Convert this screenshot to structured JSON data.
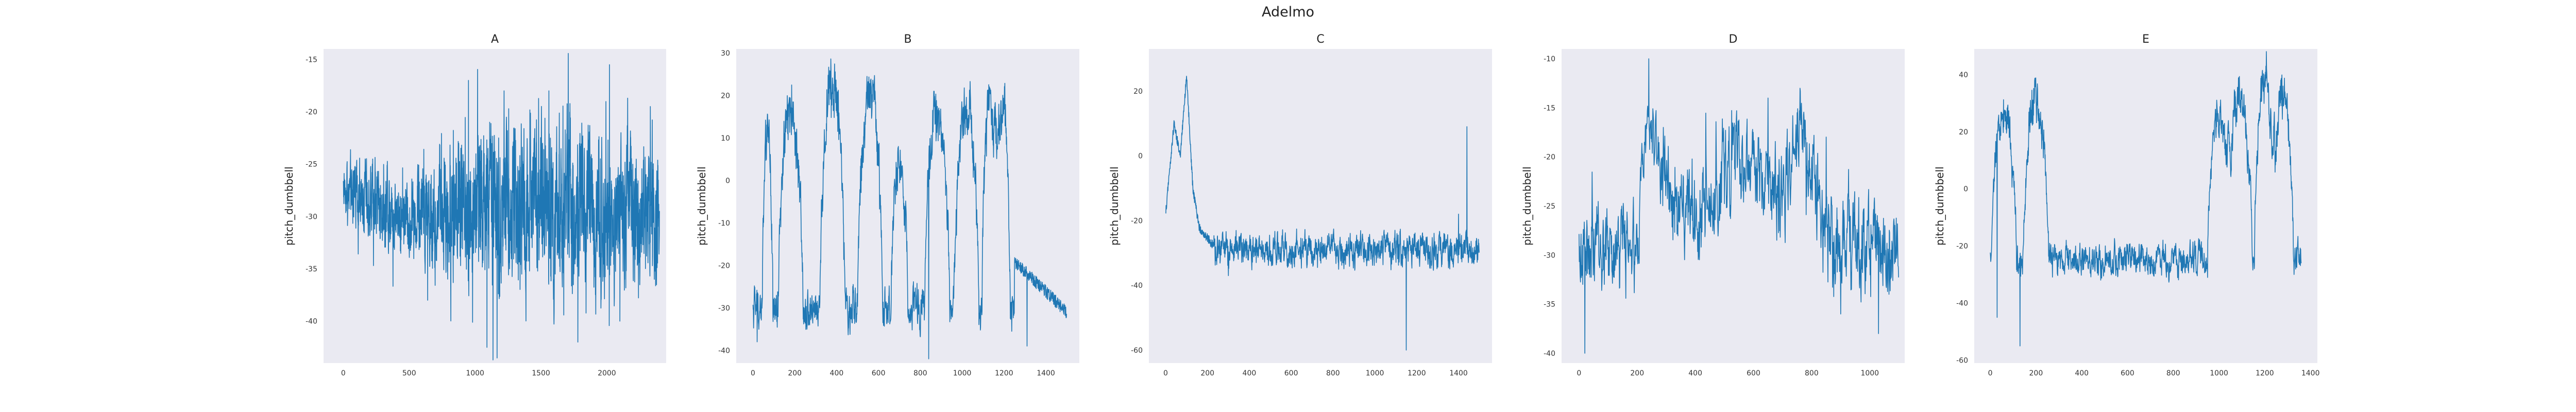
{
  "chart_data": {
    "suptitle": "Adelmo",
    "type": "line",
    "line_color": "#1f77b4",
    "panel_background": "#eaeaf2",
    "grid": false,
    "panels": [
      {
        "title": "A",
        "ylabel": "pitch_dumbbell",
        "xlim": [
          -150,
          2450
        ],
        "ylim": [
          -44,
          -14
        ],
        "xticks": [
          0,
          500,
          1000,
          1500,
          2000
        ],
        "yticks": [
          -40,
          -35,
          -30,
          -25,
          -20,
          -15
        ],
        "n_points": 2400,
        "segments": [
          {
            "x": 0,
            "base": -27,
            "amp": 1.5
          },
          {
            "x": 150,
            "base": -28,
            "amp": 2.5
          },
          {
            "x": 400,
            "base": -30,
            "amp": 2.5
          },
          {
            "x": 700,
            "base": -30,
            "amp": 3.5
          },
          {
            "x": 900,
            "base": -29,
            "amp": 5
          },
          {
            "x": 1500,
            "base": -29,
            "amp": 5.5
          },
          {
            "x": 2400,
            "base": -30,
            "amp": 4.5
          }
        ],
        "extremes": [
          {
            "x": 950,
            "y": -17
          },
          {
            "x": 1090,
            "y": -42.5
          },
          {
            "x": 1220,
            "y": -18
          },
          {
            "x": 1560,
            "y": -18
          },
          {
            "x": 1780,
            "y": -42
          },
          {
            "x": 2020,
            "y": -15.5
          },
          {
            "x": 2330,
            "y": -19.5
          },
          {
            "x": 2360,
            "y": -36
          },
          {
            "x": 640,
            "y": -38
          }
        ]
      },
      {
        "title": "B",
        "ylabel": "pitch_dumbbell",
        "xlim": [
          -80,
          1560
        ],
        "ylim": [
          -43,
          31
        ],
        "xticks": [
          0,
          200,
          400,
          600,
          800,
          1000,
          1200,
          1400
        ],
        "yticks": [
          -40,
          -30,
          -20,
          -10,
          0,
          10,
          20,
          30
        ],
        "n_points": 1500,
        "base": -30,
        "noise": 3.5,
        "pulses": [
          {
            "center": 70,
            "width": 25,
            "peak": 15
          },
          {
            "center": 180,
            "width": 60,
            "peak": 21
          },
          {
            "center": 380,
            "width": 60,
            "peak": 28
          },
          {
            "center": 560,
            "width": 60,
            "peak": 26
          },
          {
            "center": 700,
            "width": 40,
            "peak": 8
          },
          {
            "center": 880,
            "width": 60,
            "peak": 21
          },
          {
            "center": 1020,
            "width": 60,
            "peak": 22
          },
          {
            "center": 1130,
            "width": 35,
            "peak": 24
          },
          {
            "center": 1190,
            "width": 40,
            "peak": 22
          }
        ],
        "tail": {
          "from": 1250,
          "to": 1500,
          "start": -19,
          "end": -31
        },
        "extremes": [
          {
            "x": 840,
            "y": -42
          },
          {
            "x": 1310,
            "y": -39
          },
          {
            "x": 20,
            "y": -38
          }
        ]
      },
      {
        "title": "C",
        "ylabel": "pitch_dumbbell",
        "xlim": [
          -80,
          1560
        ],
        "ylim": [
          -64,
          33
        ],
        "xticks": [
          0,
          200,
          400,
          600,
          800,
          1000,
          1200,
          1400
        ],
        "yticks": [
          -60,
          -40,
          -20,
          0,
          20
        ],
        "n_points": 1500,
        "start_profile": [
          {
            "x": 0,
            "y": -18
          },
          {
            "x": 40,
            "y": 10
          },
          {
            "x": 70,
            "y": 0
          },
          {
            "x": 100,
            "y": 25
          },
          {
            "x": 130,
            "y": -10
          },
          {
            "x": 160,
            "y": -22
          },
          {
            "x": 230,
            "y": -28
          }
        ],
        "base": -29,
        "noise": 3.5,
        "extremes": [
          {
            "x": 1150,
            "y": -60
          },
          {
            "x": 1440,
            "y": 9
          },
          {
            "x": 1400,
            "y": -18
          },
          {
            "x": 300,
            "y": -37
          }
        ]
      },
      {
        "title": "D",
        "ylabel": "pitch_dumbbell",
        "xlim": [
          -60,
          1120
        ],
        "ylim": [
          -41,
          -9
        ],
        "xticks": [
          0,
          200,
          400,
          600,
          800,
          1000
        ],
        "yticks": [
          -40,
          -35,
          -30,
          -25,
          -20,
          -15,
          -10
        ],
        "n_points": 1100,
        "segments": [
          {
            "x": 0,
            "base": -30,
            "amp": 3
          },
          {
            "x": 200,
            "base": -29,
            "amp": 3
          },
          {
            "x": 240,
            "base": -16,
            "amp": 2
          },
          {
            "x": 300,
            "base": -24,
            "amp": 3
          },
          {
            "x": 400,
            "base": -26,
            "amp": 3.5
          },
          {
            "x": 560,
            "base": -20,
            "amp": 3
          },
          {
            "x": 700,
            "base": -24,
            "amp": 3
          },
          {
            "x": 760,
            "base": -16,
            "amp": 2.5
          },
          {
            "x": 850,
            "base": -28,
            "amp": 3.5
          },
          {
            "x": 1100,
            "base": -30,
            "amp": 3
          }
        ],
        "extremes": [
          {
            "x": 240,
            "y": -10
          },
          {
            "x": 760,
            "y": -13
          },
          {
            "x": 650,
            "y": -14
          },
          {
            "x": 20,
            "y": -40
          },
          {
            "x": 1030,
            "y": -38
          },
          {
            "x": 900,
            "y": -36
          }
        ]
      },
      {
        "title": "E",
        "ylabel": "pitch_dumbbell",
        "xlim": [
          -70,
          1430
        ],
        "ylim": [
          -61,
          49
        ],
        "xticks": [
          0,
          200,
          400,
          600,
          800,
          1000,
          1200,
          1400
        ],
        "yticks": [
          -60,
          -40,
          -20,
          0,
          20,
          40
        ],
        "n_points": 1360,
        "base": -25,
        "noise": 4,
        "pulses": [
          {
            "center": 60,
            "width": 55,
            "peak": 32
          },
          {
            "center": 200,
            "width": 55,
            "peak": 37
          },
          {
            "center": 1000,
            "width": 50,
            "peak": 30
          },
          {
            "center": 1090,
            "width": 55,
            "peak": 36
          },
          {
            "center": 1200,
            "width": 45,
            "peak": 44
          },
          {
            "center": 1280,
            "width": 45,
            "peak": 40
          }
        ],
        "extremes": [
          {
            "x": 130,
            "y": -55
          },
          {
            "x": 30,
            "y": -45
          }
        ]
      }
    ]
  }
}
